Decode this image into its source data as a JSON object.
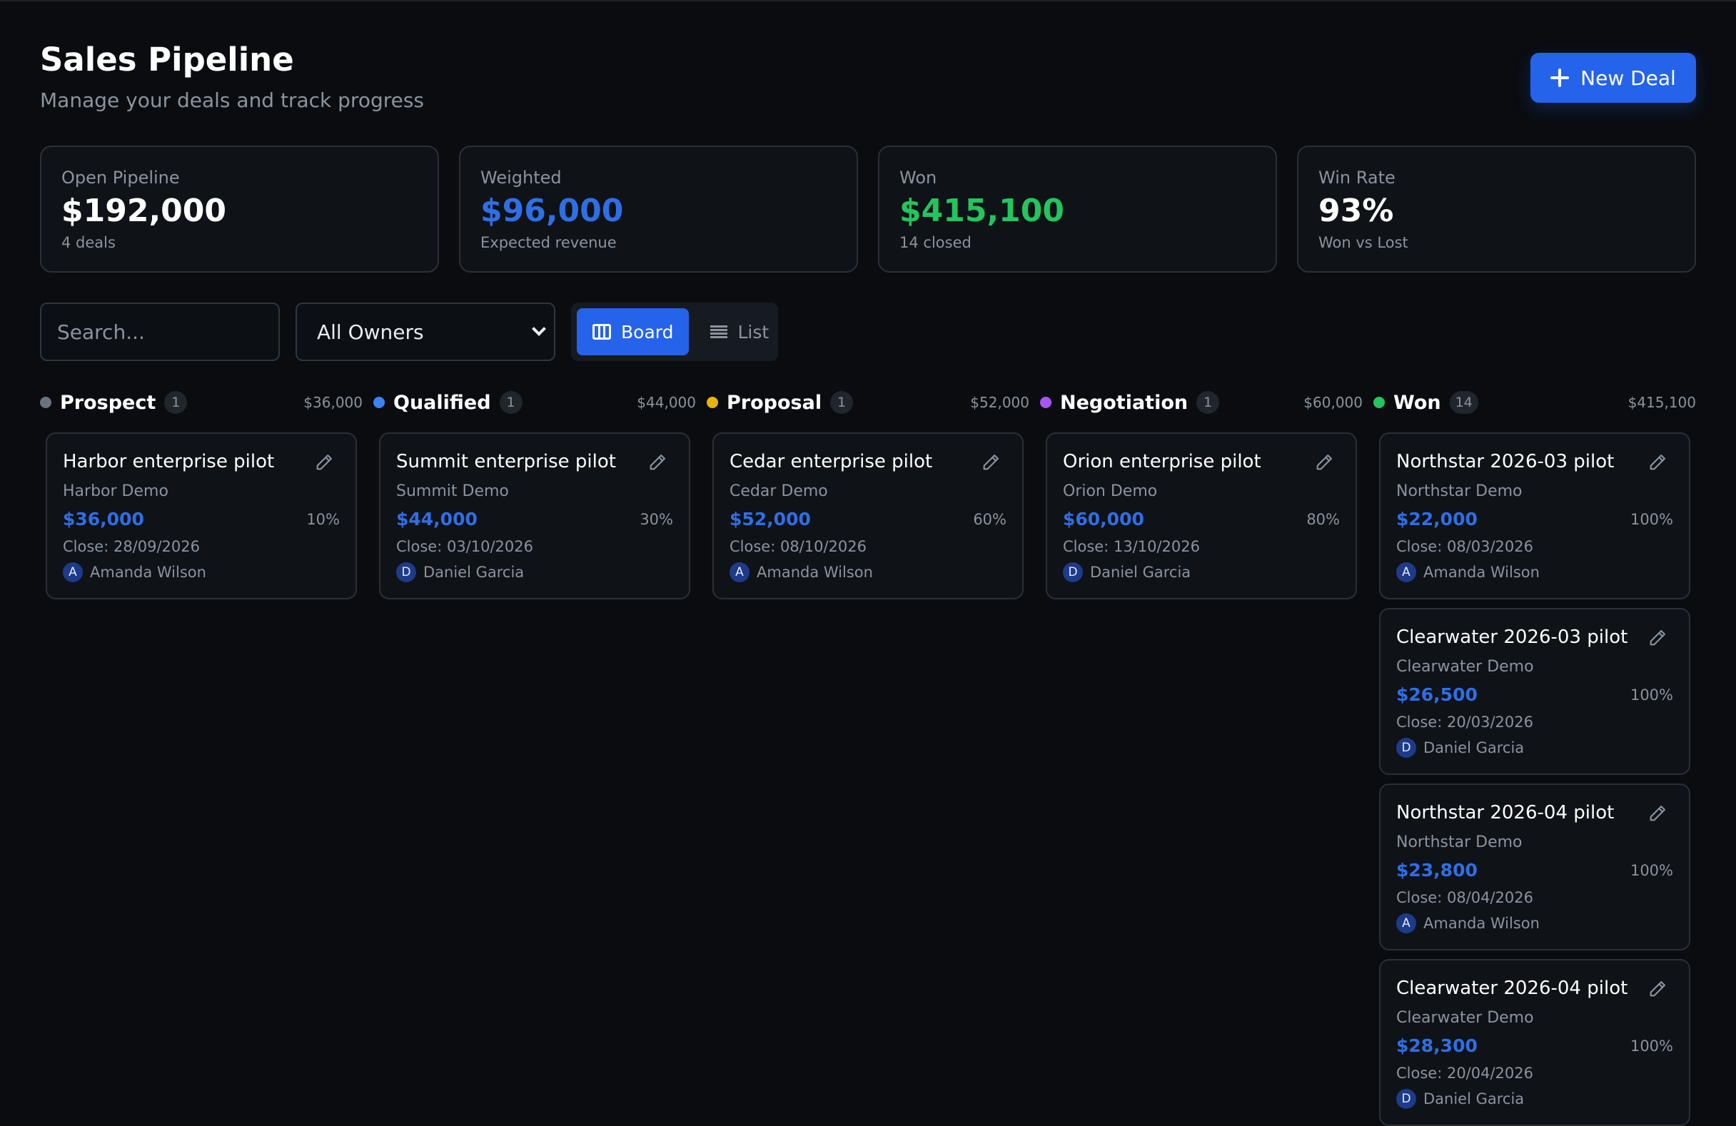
{
  "header": {
    "title": "Sales Pipeline",
    "subtitle": "Manage your deals and track progress",
    "new_deal_label": "New Deal"
  },
  "stats": [
    {
      "label": "Open Pipeline",
      "value": "$192,000",
      "sub": "4 deals"
    },
    {
      "label": "Weighted",
      "value": "$96,000",
      "sub": "Expected revenue"
    },
    {
      "label": "Won",
      "value": "$415,100",
      "sub": "14 closed"
    },
    {
      "label": "Win Rate",
      "value": "93%",
      "sub": "Won vs Lost"
    }
  ],
  "toolbar": {
    "search_placeholder": "Search...",
    "owner_filter": "All Owners",
    "view_board": "Board",
    "view_list": "List"
  },
  "columns": [
    {
      "name": "Prospect",
      "count": "1",
      "total": "$36,000",
      "color": "#6b7280",
      "deals": [
        {
          "title": "Harbor enterprise pilot",
          "company": "Harbor Demo",
          "amount": "$36,000",
          "probability": "10%",
          "close": "Close: 28/09/2026",
          "owner_initial": "A",
          "owner": "Amanda Wilson"
        }
      ]
    },
    {
      "name": "Qualified",
      "count": "1",
      "total": "$44,000",
      "color": "#3b82f6",
      "deals": [
        {
          "title": "Summit enterprise pilot",
          "company": "Summit Demo",
          "amount": "$44,000",
          "probability": "30%",
          "close": "Close: 03/10/2026",
          "owner_initial": "D",
          "owner": "Daniel Garcia"
        }
      ]
    },
    {
      "name": "Proposal",
      "count": "1",
      "total": "$52,000",
      "color": "#eab308",
      "deals": [
        {
          "title": "Cedar enterprise pilot",
          "company": "Cedar Demo",
          "amount": "$52,000",
          "probability": "60%",
          "close": "Close: 08/10/2026",
          "owner_initial": "A",
          "owner": "Amanda Wilson"
        }
      ]
    },
    {
      "name": "Negotiation",
      "count": "1",
      "total": "$60,000",
      "color": "#a855f7",
      "deals": [
        {
          "title": "Orion enterprise pilot",
          "company": "Orion Demo",
          "amount": "$60,000",
          "probability": "80%",
          "close": "Close: 13/10/2026",
          "owner_initial": "D",
          "owner": "Daniel Garcia"
        }
      ]
    },
    {
      "name": "Won",
      "count": "14",
      "total": "$415,100",
      "color": "#22c55e",
      "deals": [
        {
          "title": "Northstar 2026-03 pilot",
          "company": "Northstar Demo",
          "amount": "$22,000",
          "probability": "100%",
          "close": "Close: 08/03/2026",
          "owner_initial": "A",
          "owner": "Amanda Wilson"
        },
        {
          "title": "Clearwater 2026-03 pilot",
          "company": "Clearwater Demo",
          "amount": "$26,500",
          "probability": "100%",
          "close": "Close: 20/03/2026",
          "owner_initial": "D",
          "owner": "Daniel Garcia"
        },
        {
          "title": "Northstar 2026-04 pilot",
          "company": "Northstar Demo",
          "amount": "$23,800",
          "probability": "100%",
          "close": "Close: 08/04/2026",
          "owner_initial": "A",
          "owner": "Amanda Wilson"
        },
        {
          "title": "Clearwater 2026-04 pilot",
          "company": "Clearwater Demo",
          "amount": "$28,300",
          "probability": "100%",
          "close": "Close: 20/04/2026",
          "owner_initial": "D",
          "owner": "Daniel Garcia"
        }
      ]
    }
  ]
}
